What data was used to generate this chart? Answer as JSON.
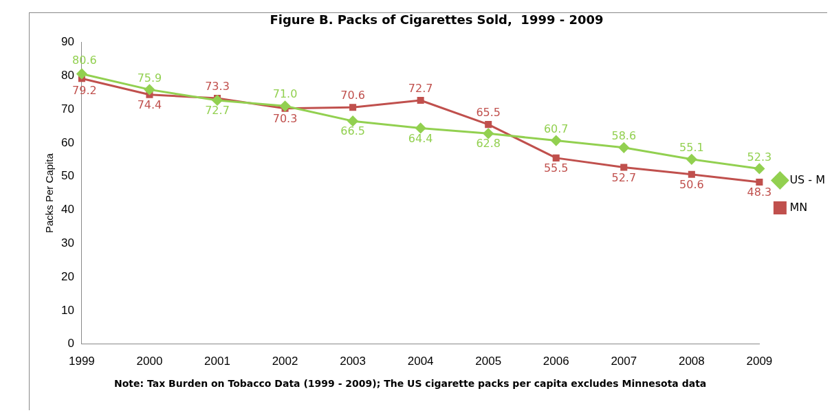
{
  "chart_data": {
    "type": "line",
    "title": "Figure B. Packs of Cigarettes Sold,  1999 - 2009",
    "ylabel": "Packs Per Capita",
    "categories": [
      "1999",
      "2000",
      "2001",
      "2002",
      "2003",
      "2004",
      "2005",
      "2006",
      "2007",
      "2008",
      "2009"
    ],
    "series": [
      {
        "name": "US - M",
        "color": "#92d050",
        "marker": "diamond",
        "values": [
          80.6,
          75.9,
          72.7,
          71.0,
          66.5,
          64.4,
          62.8,
          60.7,
          58.6,
          55.1,
          52.3
        ],
        "value_labels": [
          "80.6",
          "75.9",
          "72.7",
          "71.0",
          "66.5",
          "64.4",
          "62.8",
          "60.7",
          "58.6",
          "55.1",
          "52.3"
        ]
      },
      {
        "name": "MN",
        "color": "#c0504d",
        "marker": "square",
        "values": [
          79.2,
          74.4,
          73.3,
          70.3,
          70.6,
          72.7,
          65.5,
          55.5,
          52.7,
          50.6,
          48.3
        ],
        "value_labels": [
          "79.2",
          "74.4",
          "73.3",
          "70.3",
          "70.6",
          "72.7",
          "65.5",
          "55.5",
          "52.7",
          "50.6",
          "48.3"
        ]
      }
    ],
    "ylim": [
      0,
      90
    ],
    "yticks": [
      0,
      10,
      20,
      30,
      40,
      50,
      60,
      70,
      80,
      90
    ],
    "grid": false,
    "legend": "right",
    "line_style": "solid",
    "annotations": [
      "Note: Tax Burden on Tobacco Data (1999 - 2009); The US cigarette packs per capita excludes Minnesota data"
    ]
  }
}
